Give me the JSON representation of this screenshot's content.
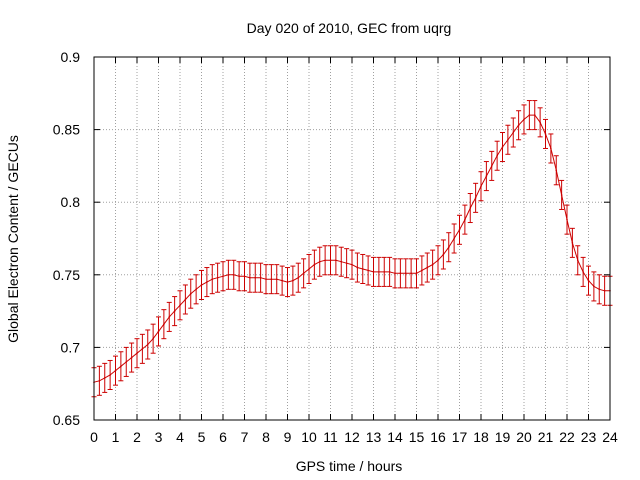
{
  "chart_data": {
    "type": "line",
    "title": "Day 020 of 2010, GEC from uqrg",
    "xlabel": "GPS time / hours",
    "ylabel": "Global Electron Content / GECUs",
    "xlim": [
      0,
      24
    ],
    "ylim": [
      0.65,
      0.9
    ],
    "grid": true,
    "error_bars": true,
    "series_color": "#cc0000",
    "x_ticks": [
      "0",
      "1",
      "2",
      "3",
      "4",
      "5",
      "6",
      "7",
      "8",
      "9",
      "10",
      "11",
      "12",
      "13",
      "14",
      "15",
      "16",
      "17",
      "18",
      "19",
      "20",
      "21",
      "22",
      "23",
      "24"
    ],
    "y_ticks": [
      "0.65",
      "0.7",
      "0.75",
      "0.8",
      "0.85",
      "0.9"
    ],
    "series": [
      {
        "x": [
          0,
          0.25,
          0.5,
          0.75,
          1,
          1.25,
          1.5,
          1.75,
          2,
          2.25,
          2.5,
          2.75,
          3,
          3.25,
          3.5,
          3.75,
          4,
          4.25,
          4.5,
          4.75,
          5,
          5.25,
          5.5,
          5.75,
          6,
          6.25,
          6.5,
          6.75,
          7,
          7.25,
          7.5,
          7.75,
          8,
          8.25,
          8.5,
          8.75,
          9,
          9.25,
          9.5,
          9.75,
          10,
          10.25,
          10.5,
          10.75,
          11,
          11.25,
          11.5,
          11.75,
          12,
          12.25,
          12.5,
          12.75,
          13,
          13.25,
          13.5,
          13.75,
          14,
          14.25,
          14.5,
          14.75,
          15,
          15.25,
          15.5,
          15.75,
          16,
          16.25,
          16.5,
          16.75,
          17,
          17.25,
          17.5,
          17.75,
          18,
          18.25,
          18.5,
          18.75,
          19,
          19.25,
          19.5,
          19.75,
          20,
          20.25,
          20.5,
          20.75,
          21,
          21.25,
          21.5,
          21.75,
          22,
          22.25,
          22.5,
          22.75,
          23,
          23.25,
          23.5,
          23.75,
          24
        ],
        "values": [
          0.676,
          0.677,
          0.679,
          0.681,
          0.684,
          0.687,
          0.69,
          0.693,
          0.696,
          0.699,
          0.702,
          0.706,
          0.711,
          0.716,
          0.721,
          0.725,
          0.729,
          0.733,
          0.737,
          0.74,
          0.743,
          0.745,
          0.747,
          0.748,
          0.749,
          0.75,
          0.75,
          0.749,
          0.749,
          0.748,
          0.748,
          0.748,
          0.747,
          0.747,
          0.747,
          0.746,
          0.745,
          0.746,
          0.748,
          0.751,
          0.754,
          0.757,
          0.759,
          0.76,
          0.76,
          0.76,
          0.759,
          0.758,
          0.757,
          0.755,
          0.754,
          0.753,
          0.752,
          0.752,
          0.752,
          0.752,
          0.751,
          0.751,
          0.751,
          0.751,
          0.751,
          0.753,
          0.755,
          0.757,
          0.76,
          0.764,
          0.769,
          0.775,
          0.781,
          0.788,
          0.796,
          0.803,
          0.811,
          0.818,
          0.825,
          0.832,
          0.838,
          0.843,
          0.848,
          0.853,
          0.857,
          0.86,
          0.86,
          0.855,
          0.847,
          0.837,
          0.822,
          0.805,
          0.788,
          0.772,
          0.76,
          0.752,
          0.746,
          0.742,
          0.74,
          0.739,
          0.739
        ],
        "error": 0.01
      }
    ]
  }
}
